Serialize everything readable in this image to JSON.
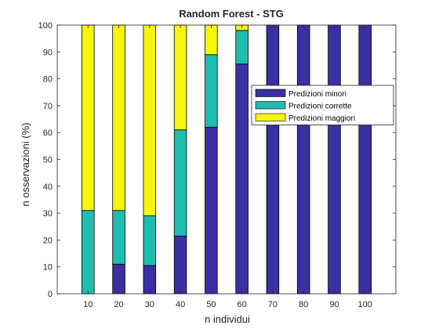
{
  "chart_data": {
    "type": "bar",
    "stacked": true,
    "title": "Random Forest - STG",
    "xlabel": "n individui",
    "ylabel": "n osservazioni (%)",
    "categories": [
      "10",
      "20",
      "30",
      "40",
      "50",
      "60",
      "70",
      "80",
      "90",
      "100"
    ],
    "ylim": [
      0,
      100
    ],
    "yticks": [
      0,
      10,
      20,
      30,
      40,
      50,
      60,
      70,
      80,
      90,
      100
    ],
    "grid": false,
    "legend_position": "upper-right",
    "series": [
      {
        "name": "Predizioni minori",
        "color": "#3a2fa3",
        "values": [
          0,
          11,
          10.5,
          21.5,
          62,
          85.5,
          100,
          100,
          100,
          100
        ]
      },
      {
        "name": "Predizioni corrette",
        "color": "#1fbcb0",
        "values": [
          31,
          20,
          18.5,
          39.5,
          27,
          12.5,
          0,
          0,
          0,
          0
        ]
      },
      {
        "name": "Predizioni maggiori",
        "color": "#f5f50e",
        "values": [
          69,
          69,
          71,
          39,
          11,
          2,
          0,
          0,
          0,
          0
        ]
      }
    ]
  }
}
